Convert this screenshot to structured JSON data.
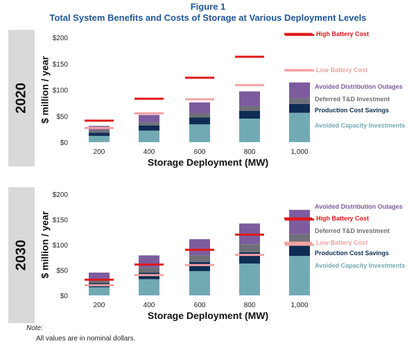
{
  "figure": {
    "label": "Figure 1",
    "title": "Total System Benefits and Costs of Storage at Various Deployment Levels",
    "note_label": "Note:",
    "note_text": "All values are in nominal dollars."
  },
  "colors": {
    "panel_bg": "#d9d9d9",
    "avoided_capacity": "#72aab4",
    "production_cost": "#0f2d54",
    "deferred_td": "#6f6f78",
    "avoided_distribution": "#7c5c9e",
    "high_cost": "#e01818",
    "low_cost": "#f4a3a3"
  },
  "chart_data": [
    {
      "type": "bar",
      "stacked": true,
      "panel_label": "2020",
      "ylabel": "$ million / year",
      "xlabel": "Storage Deployment (MW)",
      "categories": [
        "200",
        "400",
        "600",
        "800",
        "1,000"
      ],
      "ylim": [
        0,
        200
      ],
      "yticks": [
        "$0",
        "$50",
        "$100",
        "$150",
        "$200"
      ],
      "series": [
        {
          "name": "Avoided Capacity Investments",
          "color_key": "avoided_capacity",
          "values": [
            12,
            22,
            34,
            45,
            56
          ]
        },
        {
          "name": "Production Cost Savings",
          "color_key": "production_cost",
          "values": [
            6,
            10,
            13,
            15,
            17
          ]
        },
        {
          "name": "Deferred T&D Investment",
          "color_key": "deferred_td",
          "values": [
            5,
            6,
            8,
            9,
            11
          ]
        },
        {
          "name": "Avoided Distribution Outages",
          "color_key": "avoided_distribution",
          "values": [
            8,
            14,
            21,
            28,
            30
          ]
        }
      ],
      "markers": [
        {
          "name": "High Battery Cost",
          "color_key": "high_cost",
          "values": [
            41,
            83,
            123,
            163,
            205
          ]
        },
        {
          "name": "Low Battery Cost",
          "color_key": "low_cost",
          "values": [
            27,
            55,
            82,
            109,
            137
          ]
        }
      ],
      "legend_order": [
        "High Battery Cost",
        "Low Battery Cost",
        "Avoided Distribution Outages",
        "Deferred T&D Investment",
        "Production Cost Savings",
        "Avoided Capacity Investments"
      ]
    },
    {
      "type": "bar",
      "stacked": true,
      "panel_label": "2030",
      "ylabel": "$ million / year",
      "xlabel": "Storage Deployment (MW)",
      "categories": [
        "200",
        "400",
        "600",
        "800",
        "1,000"
      ],
      "ylim": [
        0,
        200
      ],
      "yticks": [
        "$0",
        "$50",
        "$100",
        "$150",
        "$200"
      ],
      "series": [
        {
          "name": "Avoided Capacity Investments",
          "color_key": "avoided_capacity",
          "values": [
            16,
            32,
            48,
            63,
            78
          ]
        },
        {
          "name": "Production Cost Savings",
          "color_key": "production_cost",
          "values": [
            8,
            13,
            18,
            22,
            25
          ]
        },
        {
          "name": "Deferred T&D Investment",
          "color_key": "deferred_td",
          "values": [
            6,
            10,
            13,
            16,
            18
          ]
        },
        {
          "name": "Avoided Distribution Outages",
          "color_key": "avoided_distribution",
          "values": [
            15,
            24,
            32,
            41,
            48
          ]
        }
      ],
      "markers": [
        {
          "name": "High Battery Cost",
          "color_key": "high_cost",
          "values": [
            31,
            61,
            90,
            120,
            150
          ]
        },
        {
          "name": "Low Battery Cost",
          "color_key": "low_cost",
          "values": [
            20,
            40,
            60,
            80,
            100
          ]
        }
      ],
      "legend_order": [
        "Avoided Distribution Outages",
        "High Battery Cost",
        "Deferred T&D Investment",
        "Low Battery Cost",
        "Production Cost Savings",
        "Avoided Capacity Investments"
      ]
    }
  ]
}
